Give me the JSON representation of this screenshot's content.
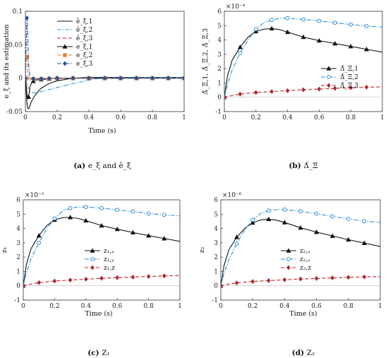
{
  "chart_data": [
    {
      "id": "a",
      "type": "line",
      "caption_prefix": "(a)",
      "caption_rest": "e_ξ and ê_ξ",
      "xlabel": "Time (s)",
      "ylabel": "e_ξ and its estimation",
      "exponent": "",
      "xlim": [
        0,
        1
      ],
      "ylim": [
        -0.05,
        0.1
      ],
      "xticks": [
        "0",
        "0.2",
        "0.4",
        "0.6",
        "0.8",
        "1"
      ],
      "yticks": [
        "-0.05",
        "0",
        "0.05",
        "0.1"
      ],
      "ytick_values": [
        -0.05,
        0,
        0.05,
        0.1
      ],
      "grid": false,
      "legend": "top-right",
      "series": [
        {
          "name": "ê_ξ,1",
          "color": "#111111",
          "dash": "solid",
          "marker": "none",
          "x": [
            0,
            0.005,
            0.01,
            0.015,
            0.02,
            0.025,
            0.03,
            0.04,
            0.06,
            0.08,
            0.1,
            0.15,
            0.2,
            0.3,
            0.4,
            0.5,
            0.6,
            0.7,
            0.8,
            0.9,
            1.0
          ],
          "y": [
            0,
            -0.02,
            -0.038,
            -0.045,
            -0.046,
            -0.044,
            -0.04,
            -0.034,
            -0.026,
            -0.02,
            -0.015,
            -0.008,
            -0.004,
            0,
            0.001,
            0.001,
            0.001,
            0.001,
            0.001,
            0.001,
            0.001
          ]
        },
        {
          "name": "ê_ξ,2",
          "color": "#2b8fd6",
          "dash": "dashdot",
          "marker": "none",
          "x": [
            0,
            0.01,
            0.02,
            0.03,
            0.05,
            0.08,
            0.1,
            0.15,
            0.2,
            0.3,
            0.4,
            0.45,
            0.5,
            0.6,
            0.7,
            0.8,
            0.9,
            1.0
          ],
          "y": [
            0,
            -0.008,
            -0.015,
            -0.02,
            -0.022,
            -0.021,
            -0.02,
            -0.017,
            -0.014,
            -0.008,
            -0.003,
            -0.001,
            0,
            0.001,
            0.001,
            0.001,
            0.001,
            0.001
          ]
        },
        {
          "name": "ê_ξ,3",
          "color": "#b0282e",
          "dash": "dashed",
          "marker": "none",
          "x": [
            0,
            0.02,
            0.05,
            0.1,
            0.2,
            0.4,
            0.6,
            0.8,
            1.0
          ],
          "y": [
            0,
            -0.001,
            -0.001,
            -0.001,
            0,
            0,
            0,
            0,
            0
          ]
        },
        {
          "name": "e_ξ,1",
          "color": "#111111",
          "dash": "solid",
          "marker": "triangle",
          "x": [
            0,
            0.005,
            0.01,
            0.015,
            0.02,
            0.025,
            0.03,
            0.04,
            0.06,
            0.1,
            0.15,
            0.2,
            0.3,
            0.4,
            0.6,
            0.8,
            1.0
          ],
          "y": [
            0,
            -0.01,
            -0.025,
            -0.031,
            -0.028,
            -0.02,
            -0.012,
            -0.006,
            -0.003,
            -0.002,
            -0.001,
            0,
            0,
            0,
            0,
            0,
            0
          ],
          "marker_x": [
            0,
            0.02,
            0.05,
            0.1,
            0.15,
            0.2,
            0.3,
            0.4,
            0.5,
            0.6,
            0.7,
            0.8,
            0.9,
            1.0
          ]
        },
        {
          "name": "e_ξ,2",
          "color": "#e8822a",
          "dash": "dashed",
          "marker": "square",
          "x": [
            0,
            0.005,
            0.01,
            0.015,
            0.02,
            0.03,
            0.05,
            0.1,
            0.2,
            0.4,
            0.6,
            0.8,
            1.0
          ],
          "y": [
            0,
            0.03,
            0.032,
            0.01,
            -0.003,
            -0.002,
            -0.001,
            -0.001,
            0,
            0,
            0,
            0,
            0
          ],
          "marker_x": [
            0,
            0.01,
            0.05,
            0.1,
            0.15,
            0.2,
            0.3,
            0.4,
            0.5,
            0.6,
            0.7,
            0.8,
            0.9,
            1.0
          ]
        },
        {
          "name": "e_ξ,3",
          "color": "#1f4fa8",
          "dash": "dashdot",
          "marker": "diamond",
          "x": [
            0,
            0.003,
            0.006,
            0.01,
            0.015,
            0.02,
            0.03,
            0.05,
            0.1,
            0.2,
            0.4,
            0.6,
            0.8,
            1.0
          ],
          "y": [
            0,
            0.03,
            0.06,
            0.09,
            0.06,
            0.02,
            0,
            -0.001,
            -0.001,
            0,
            0,
            0,
            0,
            0
          ],
          "marker_x": [
            0,
            0.01,
            0.05,
            0.1,
            0.15,
            0.2,
            0.3,
            0.4,
            0.5,
            0.6,
            0.7,
            0.8,
            0.9,
            1.0
          ]
        }
      ]
    },
    {
      "id": "b",
      "type": "line",
      "caption_prefix": "(b)",
      "caption_rest": "Δ̂_Ξ",
      "xlabel": "",
      "ylabel": "Δ̂_Ξ,1, Δ̂_Ξ,2, Δ̂_Ξ,3",
      "exponent": "×10⁻⁴",
      "xlim": [
        0,
        1
      ],
      "ylim": [
        -1,
        6
      ],
      "xticks": [
        "0",
        "0.2",
        "0.4",
        "0.6",
        "0.8",
        "1"
      ],
      "yticks": [
        "-1",
        "0",
        "1",
        "2",
        "3",
        "4",
        "5",
        "6"
      ],
      "ytick_values": [
        -1,
        0,
        1,
        2,
        3,
        4,
        5,
        6
      ],
      "grid": false,
      "legend": "right-middle",
      "series": [
        {
          "name": "Δ̂_Ξ,1",
          "color": "#111111",
          "dash": "solid",
          "marker": "triangle",
          "x": [
            0,
            0.02,
            0.05,
            0.1,
            0.15,
            0.2,
            0.25,
            0.3,
            0.35,
            0.4,
            0.5,
            0.6,
            0.7,
            0.8,
            0.9,
            1.0
          ],
          "y": [
            0,
            1.5,
            2.6,
            3.5,
            4.2,
            4.6,
            4.75,
            4.8,
            4.72,
            4.55,
            4.2,
            3.95,
            3.75,
            3.55,
            3.35,
            3.15
          ],
          "marker_x": [
            0,
            0.1,
            0.2,
            0.3,
            0.4,
            0.5,
            0.6,
            0.7,
            0.8,
            0.9
          ]
        },
        {
          "name": "Δ̂_Ξ,2",
          "color": "#2b8fd6",
          "dash": "dashdot",
          "marker": "circle",
          "x": [
            0,
            0.02,
            0.05,
            0.1,
            0.15,
            0.2,
            0.25,
            0.3,
            0.35,
            0.4,
            0.5,
            0.6,
            0.7,
            0.8,
            0.9,
            1.0
          ],
          "y": [
            0,
            0.9,
            1.9,
            3.1,
            4.0,
            4.75,
            5.2,
            5.4,
            5.5,
            5.52,
            5.43,
            5.33,
            5.2,
            5.08,
            4.97,
            4.9
          ],
          "marker_x": [
            0,
            0.1,
            0.2,
            0.3,
            0.4,
            0.5,
            0.6,
            0.7,
            0.8,
            0.9
          ]
        },
        {
          "name": "Δ̂_Ξ,3",
          "color": "#b0282e",
          "dash": "dashed",
          "marker": "diamond",
          "x": [
            0,
            0.05,
            0.1,
            0.2,
            0.3,
            0.4,
            0.5,
            0.6,
            0.7,
            0.8,
            0.9,
            1.0
          ],
          "y": [
            0,
            0.12,
            0.22,
            0.33,
            0.4,
            0.46,
            0.52,
            0.57,
            0.62,
            0.66,
            0.7,
            0.73
          ],
          "marker_x": [
            0,
            0.1,
            0.2,
            0.3,
            0.4,
            0.5,
            0.6,
            0.7,
            0.8,
            0.9
          ]
        }
      ]
    },
    {
      "id": "c",
      "type": "line",
      "caption_prefix": "(c)",
      "caption_rest": "Z₁",
      "xlabel": "Time (s)",
      "ylabel": "z₁",
      "exponent": "×10⁻⁵",
      "xlim": [
        0,
        1
      ],
      "ylim": [
        -1,
        6
      ],
      "xticks": [
        "0",
        "0.2",
        "0.4",
        "0.6",
        "0.8",
        "1"
      ],
      "yticks": [
        "-1",
        "0",
        "1",
        "2",
        "3",
        "4",
        "5",
        "6"
      ],
      "ytick_values": [
        -1,
        0,
        1,
        2,
        3,
        4,
        5,
        6
      ],
      "grid": false,
      "legend": "center",
      "series": [
        {
          "name": "z₁,ₓ",
          "color": "#111111",
          "dash": "solid",
          "marker": "triangle",
          "x": [
            0,
            0.02,
            0.05,
            0.1,
            0.15,
            0.2,
            0.25,
            0.3,
            0.35,
            0.4,
            0.5,
            0.6,
            0.7,
            0.8,
            0.9,
            1.0
          ],
          "y": [
            0,
            1.5,
            2.6,
            3.5,
            4.2,
            4.6,
            4.75,
            4.78,
            4.7,
            4.55,
            4.2,
            3.95,
            3.72,
            3.5,
            3.3,
            3.1
          ],
          "marker_x": [
            0,
            0.1,
            0.2,
            0.3,
            0.4,
            0.5,
            0.6,
            0.7,
            0.8,
            0.9
          ]
        },
        {
          "name": "z₁,ᵧ",
          "color": "#2b8fd6",
          "dash": "dashdot",
          "marker": "circle",
          "x": [
            0,
            0.02,
            0.05,
            0.1,
            0.15,
            0.2,
            0.25,
            0.3,
            0.35,
            0.4,
            0.5,
            0.6,
            0.7,
            0.8,
            0.9,
            1.0
          ],
          "y": [
            0,
            0.9,
            1.9,
            3.0,
            4.0,
            4.7,
            5.2,
            5.42,
            5.5,
            5.5,
            5.42,
            5.3,
            5.18,
            5.05,
            4.95,
            4.88
          ],
          "marker_x": [
            0,
            0.1,
            0.2,
            0.3,
            0.4,
            0.5,
            0.6,
            0.7,
            0.8,
            0.9
          ]
        },
        {
          "name": "z₁,z",
          "color": "#b0282e",
          "dash": "dashed",
          "marker": "diamond",
          "x": [
            0,
            0.05,
            0.1,
            0.2,
            0.3,
            0.4,
            0.5,
            0.6,
            0.7,
            0.8,
            0.9,
            1.0
          ],
          "y": [
            0,
            0.12,
            0.22,
            0.33,
            0.4,
            0.46,
            0.52,
            0.57,
            0.61,
            0.65,
            0.69,
            0.72
          ],
          "marker_x": [
            0,
            0.1,
            0.2,
            0.3,
            0.4,
            0.5,
            0.6,
            0.7,
            0.8,
            0.9
          ]
        }
      ]
    },
    {
      "id": "d",
      "type": "line",
      "caption_prefix": "(d)",
      "caption_rest": "Z₂",
      "xlabel": "Time (s)",
      "ylabel": "z₂",
      "exponent": "×10⁻⁶",
      "xlim": [
        0,
        1
      ],
      "ylim": [
        -1,
        6
      ],
      "xticks": [
        "0",
        "0.2",
        "0.4",
        "0.6",
        "0.8",
        "1"
      ],
      "yticks": [
        "-1",
        "0",
        "1",
        "2",
        "3",
        "4",
        "5",
        "6"
      ],
      "ytick_values": [
        -1,
        0,
        1,
        2,
        3,
        4,
        5,
        6
      ],
      "grid": false,
      "legend": "center",
      "series": [
        {
          "name": "z₂,ₓ",
          "color": "#111111",
          "dash": "solid",
          "marker": "triangle",
          "x": [
            0,
            0.02,
            0.05,
            0.1,
            0.15,
            0.2,
            0.25,
            0.3,
            0.35,
            0.4,
            0.5,
            0.6,
            0.7,
            0.8,
            0.9,
            1.0
          ],
          "y": [
            0,
            1.4,
            2.5,
            3.4,
            4.0,
            4.4,
            4.6,
            4.65,
            4.58,
            4.42,
            4.05,
            3.75,
            3.48,
            3.22,
            2.98,
            2.75
          ],
          "marker_x": [
            0,
            0.1,
            0.2,
            0.3,
            0.4,
            0.5,
            0.6,
            0.7,
            0.8,
            0.9
          ]
        },
        {
          "name": "z₂,ᵧ",
          "color": "#2b8fd6",
          "dash": "dashdot",
          "marker": "circle",
          "x": [
            0,
            0.02,
            0.05,
            0.1,
            0.15,
            0.2,
            0.25,
            0.3,
            0.35,
            0.4,
            0.5,
            0.6,
            0.7,
            0.8,
            0.9,
            1.0
          ],
          "y": [
            0,
            0.85,
            1.8,
            2.95,
            3.9,
            4.6,
            5.05,
            5.25,
            5.32,
            5.32,
            5.2,
            5.03,
            4.85,
            4.67,
            4.52,
            4.42
          ],
          "marker_x": [
            0,
            0.1,
            0.2,
            0.3,
            0.4,
            0.5,
            0.6,
            0.7,
            0.8,
            0.9
          ]
        },
        {
          "name": "z₂,z",
          "color": "#b0282e",
          "dash": "dashed",
          "marker": "diamond",
          "x": [
            0,
            0.05,
            0.1,
            0.2,
            0.3,
            0.4,
            0.5,
            0.6,
            0.7,
            0.8,
            0.9,
            1.0
          ],
          "y": [
            0,
            0.12,
            0.2,
            0.3,
            0.36,
            0.42,
            0.47,
            0.51,
            0.55,
            0.59,
            0.62,
            0.64
          ],
          "marker_x": [
            0,
            0.1,
            0.2,
            0.3,
            0.4,
            0.5,
            0.6,
            0.7,
            0.8,
            0.9
          ]
        }
      ]
    }
  ]
}
